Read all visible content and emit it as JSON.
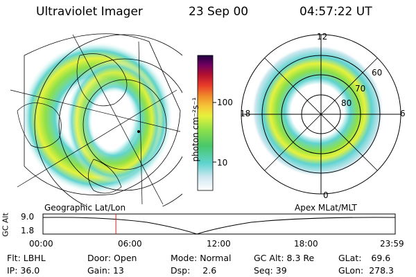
{
  "header": {
    "instrument": "Ultraviolet Imager",
    "date": "23 Sep 00",
    "time": "04:57:22 UT"
  },
  "colorbar": {
    "unit_label": "photon cm⁻²s⁻¹",
    "tick_labels": [
      "100",
      "10"
    ],
    "colors": [
      "#ffffff",
      "#cfe8f0",
      "#5fd3d0",
      "#48c86a",
      "#8ee04a",
      "#e6f23c",
      "#f5c83a",
      "#f08a2a",
      "#e83a2a",
      "#b01030",
      "#700060",
      "#200040"
    ]
  },
  "polar_plot": {
    "hour_labels": [
      "12",
      "18",
      "6",
      "0"
    ],
    "lat_labels": [
      "60",
      "70",
      "80"
    ]
  },
  "timeline": {
    "y_axis_label": "GC Alt",
    "y_ticks": [
      "9.0",
      "1.8"
    ],
    "left_title": "Geographic Lat/Lon",
    "right_title": "Apex MLat/MLT",
    "x_ticks": [
      "00:00",
      "06:00",
      "12:00",
      "18:00",
      "23:59"
    ],
    "current_time_fraction": 0.207,
    "marker_color": "#d02020"
  },
  "status": {
    "flt_label": "Flt:",
    "flt_value": "LBHL",
    "ip_label": "IP:",
    "ip_value": "36.0",
    "door_label": "Door:",
    "door_value": "Open",
    "gain_label": "Gain:",
    "gain_value": "13",
    "mode_label": "Mode:",
    "mode_value": "Normal",
    "dsp_label": "Dsp:",
    "dsp_value": "2.6",
    "gcalt_label": "GC Alt:",
    "gcalt_value": "8.3 Re",
    "seq_label": "Seq:",
    "seq_value": "39",
    "glat_label": "GLat:",
    "glat_value": "69.6",
    "glon_label": "GLon:",
    "glon_value": "278.3"
  }
}
